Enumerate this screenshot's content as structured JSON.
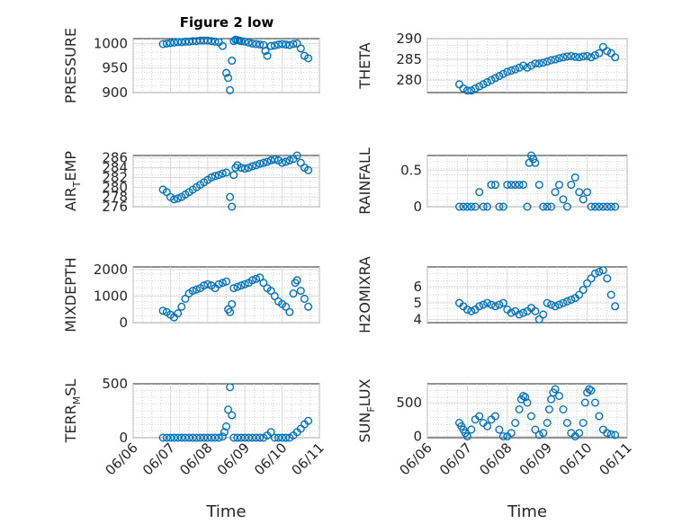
{
  "figure": {
    "title": "Figure 2 low",
    "marker_color": "#0072bd",
    "x_ticks": [
      "06/06",
      "06/07",
      "06/08",
      "06/09",
      "06/10",
      "06/11"
    ],
    "xlabel": "Time"
  },
  "chart_data": [
    {
      "type": "scatter",
      "title": "Figure 2 low",
      "ylabel": "PRESSURE",
      "xlim": [
        0,
        5
      ],
      "ylim": [
        900,
        1010
      ],
      "yticks": [
        900,
        950,
        1000
      ],
      "grid": true,
      "xlabel": "",
      "x": [
        0.8,
        0.9,
        1.0,
        1.1,
        1.2,
        1.3,
        1.4,
        1.5,
        1.6,
        1.7,
        1.8,
        1.9,
        2.0,
        2.1,
        2.2,
        2.3,
        2.4,
        2.5,
        2.55,
        2.6,
        2.65,
        2.7,
        2.75,
        2.8,
        2.85,
        2.9,
        3.0,
        3.1,
        3.2,
        3.3,
        3.4,
        3.5,
        3.55,
        3.6,
        3.7,
        3.8,
        3.9,
        4.0,
        4.1,
        4.2,
        4.3,
        4.4,
        4.5,
        4.6,
        4.7
      ],
      "y": [
        999,
        1000,
        1001,
        1002,
        1003,
        1003,
        1004,
        1004,
        1005,
        1005,
        1006,
        1006,
        1006,
        1005,
        1004,
        1003,
        995,
        940,
        930,
        905,
        965,
        1005,
        1008,
        1007,
        1006,
        1005,
        1004,
        1002,
        1000,
        999,
        998,
        997,
        985,
        975,
        995,
        996,
        998,
        999,
        998,
        997,
        999,
        1000,
        990,
        975,
        970
      ]
    },
    {
      "type": "scatter",
      "ylabel": "THETA",
      "xlim": [
        0,
        5
      ],
      "ylim": [
        277,
        290
      ],
      "yticks": [
        280,
        285,
        290
      ],
      "grid": true,
      "x": [
        0.8,
        0.9,
        1.0,
        1.1,
        1.2,
        1.3,
        1.4,
        1.5,
        1.6,
        1.7,
        1.8,
        1.9,
        2.0,
        2.1,
        2.2,
        2.3,
        2.4,
        2.5,
        2.6,
        2.7,
        2.8,
        2.9,
        3.0,
        3.1,
        3.2,
        3.3,
        3.4,
        3.5,
        3.6,
        3.7,
        3.8,
        3.9,
        4.0,
        4.1,
        4.2,
        4.3,
        4.4,
        4.5,
        4.6,
        4.7
      ],
      "y": [
        279,
        278,
        277.5,
        277.5,
        278,
        278.5,
        279,
        279.5,
        280,
        280.5,
        281,
        281.5,
        282,
        282.3,
        282.6,
        283,
        283.5,
        283,
        283.5,
        284,
        284,
        284.2,
        284.5,
        284.8,
        285,
        285.3,
        285.5,
        285.7,
        285.8,
        285.6,
        285.5,
        285.7,
        285.8,
        285.5,
        286,
        286.5,
        288,
        287,
        286.5,
        285.5
      ]
    },
    {
      "type": "scatter",
      "ylabel": "AIR_TEMP",
      "xlim": [
        0,
        5
      ],
      "ylim": [
        276,
        286.5
      ],
      "yticks": [
        276,
        278,
        280,
        282,
        284,
        286
      ],
      "grid": true,
      "x": [
        0.8,
        0.9,
        1.0,
        1.1,
        1.2,
        1.3,
        1.4,
        1.5,
        1.6,
        1.7,
        1.8,
        1.9,
        2.0,
        2.1,
        2.2,
        2.3,
        2.4,
        2.5,
        2.6,
        2.65,
        2.7,
        2.75,
        2.8,
        2.9,
        3.0,
        3.1,
        3.2,
        3.3,
        3.4,
        3.5,
        3.6,
        3.7,
        3.8,
        3.9,
        4.0,
        4.1,
        4.2,
        4.3,
        4.4,
        4.5,
        4.6,
        4.7
      ],
      "y": [
        279.5,
        279,
        278,
        277.5,
        277.7,
        278,
        278.5,
        279,
        279.5,
        280,
        280.5,
        281,
        281.5,
        282,
        282.3,
        282.5,
        282.8,
        283,
        278,
        276,
        282.5,
        284,
        284.5,
        284,
        283.8,
        284,
        284.3,
        284.5,
        284.8,
        285,
        285.2,
        285.5,
        285.7,
        285.5,
        285,
        285.2,
        285.5,
        285.8,
        286.5,
        285,
        284,
        283.5
      ]
    },
    {
      "type": "scatter",
      "ylabel": "RAINFALL",
      "xlim": [
        0,
        5
      ],
      "ylim": [
        0,
        0.7
      ],
      "yticks": [
        0,
        0.5
      ],
      "grid": true,
      "x": [
        0.8,
        0.9,
        1.0,
        1.1,
        1.2,
        1.3,
        1.4,
        1.5,
        1.6,
        1.7,
        1.8,
        1.9,
        2.0,
        2.1,
        2.2,
        2.3,
        2.4,
        2.5,
        2.55,
        2.6,
        2.65,
        2.7,
        2.8,
        2.9,
        3.0,
        3.1,
        3.2,
        3.3,
        3.4,
        3.5,
        3.6,
        3.7,
        3.8,
        3.9,
        4.0,
        4.1,
        4.2,
        4.3,
        4.4,
        4.5,
        4.6,
        4.7
      ],
      "y": [
        0,
        0,
        0,
        0,
        0,
        0.2,
        0,
        0,
        0.3,
        0.3,
        0,
        0,
        0.3,
        0.3,
        0.3,
        0.3,
        0.3,
        0,
        0.6,
        0.7,
        0.65,
        0.6,
        0.3,
        0,
        0,
        0,
        0.2,
        0.3,
        0.1,
        0,
        0.3,
        0.4,
        0.2,
        0.1,
        0.2,
        0,
        0,
        0,
        0,
        0,
        0,
        0
      ]
    },
    {
      "type": "scatter",
      "ylabel": "MIXDEPTH",
      "xlim": [
        0,
        5
      ],
      "ylim": [
        0,
        2100
      ],
      "yticks": [
        0,
        1000,
        2000
      ],
      "grid": true,
      "x": [
        0.8,
        0.9,
        1.0,
        1.1,
        1.2,
        1.3,
        1.4,
        1.5,
        1.6,
        1.7,
        1.8,
        1.9,
        2.0,
        2.1,
        2.2,
        2.3,
        2.4,
        2.5,
        2.55,
        2.6,
        2.65,
        2.7,
        2.8,
        2.9,
        3.0,
        3.1,
        3.2,
        3.3,
        3.4,
        3.5,
        3.6,
        3.7,
        3.8,
        3.9,
        4.0,
        4.1,
        4.2,
        4.3,
        4.35,
        4.4,
        4.5,
        4.6,
        4.7
      ],
      "y": [
        450,
        400,
        300,
        200,
        350,
        600,
        900,
        1100,
        1200,
        1250,
        1300,
        1400,
        1450,
        1400,
        1300,
        1450,
        1500,
        1550,
        500,
        400,
        700,
        1300,
        1350,
        1400,
        1450,
        1500,
        1600,
        1650,
        1700,
        1500,
        1300,
        1200,
        1000,
        800,
        700,
        600,
        400,
        1100,
        1500,
        1600,
        1200,
        900,
        600
      ]
    },
    {
      "type": "scatter",
      "ylabel": "H2OMIXRA",
      "xlim": [
        0,
        5
      ],
      "ylim": [
        3.8,
        7.2
      ],
      "yticks": [
        4,
        5,
        6
      ],
      "grid": true,
      "x": [
        0.8,
        0.9,
        1.0,
        1.1,
        1.2,
        1.3,
        1.4,
        1.5,
        1.6,
        1.7,
        1.8,
        1.9,
        2.0,
        2.1,
        2.2,
        2.3,
        2.4,
        2.5,
        2.6,
        2.7,
        2.8,
        2.9,
        3.0,
        3.1,
        3.2,
        3.3,
        3.4,
        3.5,
        3.6,
        3.7,
        3.8,
        3.9,
        4.0,
        4.1,
        4.2,
        4.3,
        4.4,
        4.5,
        4.6,
        4.7
      ],
      "y": [
        5,
        4.8,
        4.6,
        4.5,
        4.6,
        4.8,
        4.9,
        5,
        4.9,
        4.8,
        4.9,
        5,
        4.6,
        4.4,
        4.5,
        4.3,
        4.4,
        4.5,
        4.7,
        4.5,
        4,
        4.3,
        5,
        4.9,
        4.8,
        4.9,
        5,
        5.1,
        5.2,
        5.3,
        5.5,
        5.8,
        6.2,
        6.5,
        6.8,
        6.9,
        7,
        6.5,
        5.5,
        4.8
      ]
    },
    {
      "type": "scatter",
      "ylabel": "TERR_MSL",
      "xlim": [
        0,
        5
      ],
      "ylim": [
        0,
        480
      ],
      "yticks": [
        0,
        500
      ],
      "grid": true,
      "x": [
        0.8,
        0.9,
        1.0,
        1.1,
        1.2,
        1.3,
        1.4,
        1.5,
        1.6,
        1.7,
        1.8,
        1.9,
        2.0,
        2.1,
        2.2,
        2.3,
        2.4,
        2.45,
        2.5,
        2.55,
        2.6,
        2.65,
        2.7,
        2.8,
        2.9,
        3.0,
        3.1,
        3.2,
        3.3,
        3.4,
        3.5,
        3.6,
        3.7,
        3.8,
        3.9,
        4.0,
        4.1,
        4.2,
        4.3,
        4.4,
        4.5,
        4.6,
        4.7
      ],
      "y": [
        0,
        0,
        0,
        0,
        0,
        0,
        0,
        0,
        0,
        0,
        0,
        0,
        0,
        0,
        0,
        0,
        10,
        50,
        100,
        250,
        450,
        200,
        0,
        0,
        0,
        0,
        0,
        0,
        0,
        0,
        0,
        20,
        50,
        0,
        0,
        0,
        0,
        0,
        20,
        50,
        80,
        120,
        150
      ]
    },
    {
      "type": "scatter",
      "ylabel": "SUN_FLUX",
      "xlim": [
        0,
        5
      ],
      "ylim": [
        -20,
        780
      ],
      "yticks": [
        0,
        500
      ],
      "grid": true,
      "x": [
        0.8,
        0.85,
        0.9,
        0.95,
        1.0,
        1.1,
        1.2,
        1.3,
        1.4,
        1.5,
        1.6,
        1.7,
        1.8,
        1.9,
        2.0,
        2.1,
        2.2,
        2.3,
        2.35,
        2.4,
        2.45,
        2.5,
        2.6,
        2.7,
        2.8,
        2.9,
        3.0,
        3.05,
        3.1,
        3.15,
        3.2,
        3.3,
        3.4,
        3.5,
        3.6,
        3.7,
        3.8,
        3.9,
        3.95,
        4.0,
        4.05,
        4.1,
        4.2,
        4.3,
        4.4,
        4.5,
        4.6,
        4.7
      ],
      "y": [
        200,
        150,
        100,
        50,
        0,
        100,
        250,
        300,
        200,
        150,
        250,
        300,
        100,
        0,
        0,
        50,
        200,
        400,
        550,
        600,
        580,
        500,
        300,
        100,
        20,
        50,
        200,
        400,
        550,
        650,
        700,
        600,
        400,
        200,
        50,
        0,
        50,
        200,
        500,
        650,
        700,
        680,
        500,
        300,
        100,
        50,
        30,
        20
      ]
    }
  ]
}
